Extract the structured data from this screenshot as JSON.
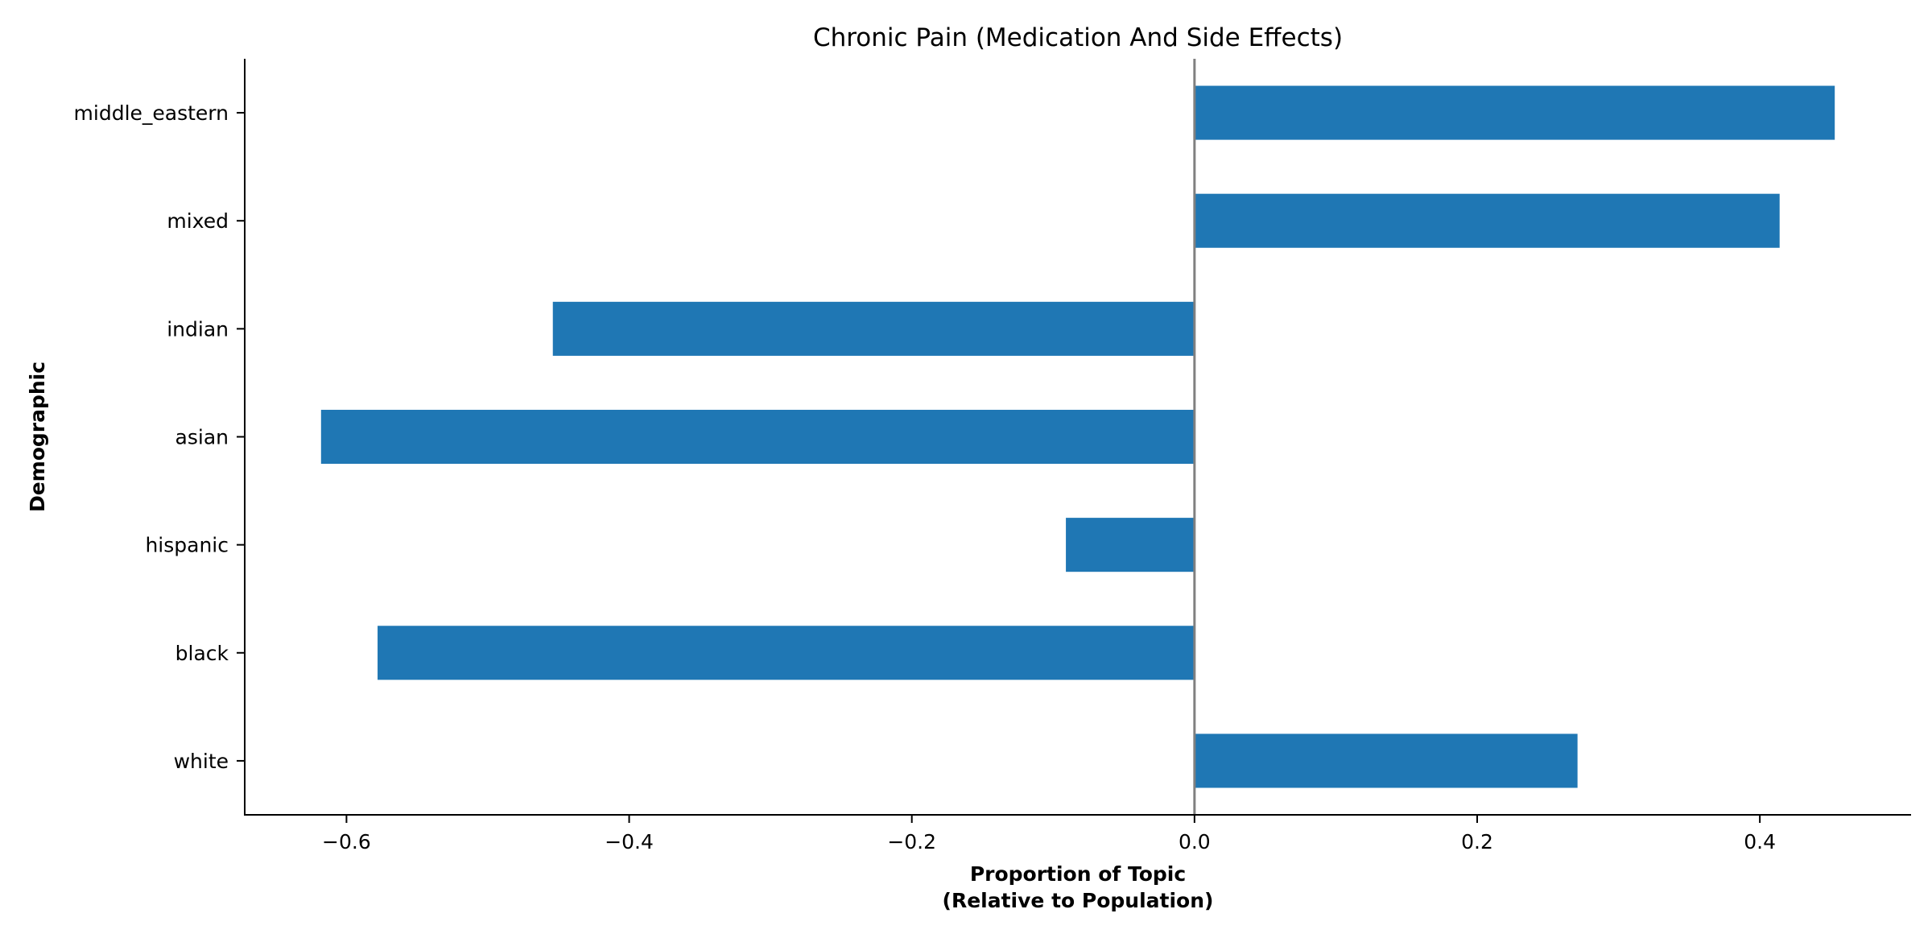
{
  "chart_data": {
    "type": "bar",
    "orientation": "horizontal",
    "title": "Chronic Pain (Medication And Side Effects)",
    "xlabel": [
      "Proportion of Topic",
      "(Relative to Population)"
    ],
    "ylabel": "Demographic",
    "categories": [
      "white",
      "black",
      "hispanic",
      "asian",
      "indian",
      "mixed",
      "middle_eastern"
    ],
    "values": [
      0.271,
      -0.578,
      -0.091,
      -0.618,
      -0.454,
      0.414,
      0.453
    ],
    "xlim": [
      -0.672,
      0.507
    ],
    "xticks": [
      -0.6,
      -0.4,
      -0.2,
      0.0,
      0.2,
      0.4
    ],
    "xtick_labels": [
      "−0.6",
      "−0.4",
      "−0.2",
      "0.0",
      "0.2",
      "0.4"
    ],
    "bar_color": "#1f77b4",
    "zero_line_color": "#808080",
    "grid": false,
    "legend": "none"
  }
}
